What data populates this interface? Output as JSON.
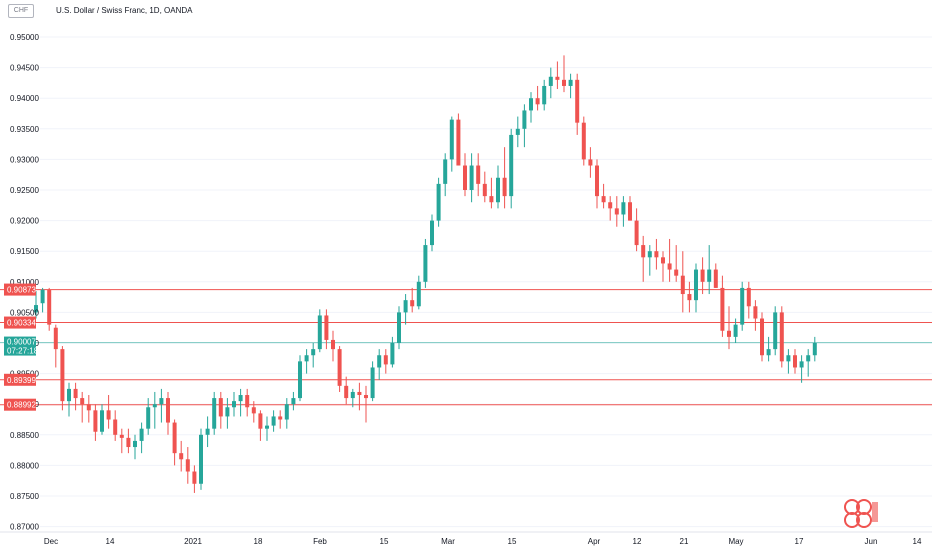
{
  "header": {
    "currency_badge": "CHF",
    "title": "U.S. Dollar / Swiss Franc, 1D, OANDA"
  },
  "chart_data": {
    "type": "candlestick",
    "y_ticks": [
      "0.95000",
      "0.94500",
      "0.94000",
      "0.93500",
      "0.93000",
      "0.92500",
      "0.92000",
      "0.91500",
      "0.91000",
      "0.90500",
      "0.90000",
      "0.89500",
      "0.89000",
      "0.88500",
      "0.88000",
      "0.87500",
      "0.87000"
    ],
    "y_tick_values": [
      0.95,
      0.945,
      0.94,
      0.935,
      0.93,
      0.925,
      0.92,
      0.915,
      0.91,
      0.905,
      0.9,
      0.895,
      0.89,
      0.885,
      0.88,
      0.875,
      0.87
    ],
    "ylim": [
      0.8692,
      0.9525
    ],
    "x_ticks": [
      "Dec",
      "14",
      "2021",
      "18",
      "Feb",
      "15",
      "Mar",
      "15",
      "Apr",
      "12",
      "21",
      "May",
      "17",
      "Jun",
      "14"
    ],
    "colors": {
      "up": "#26a69a",
      "down": "#ef5350",
      "level": "#ef5350",
      "current": "#26a69a",
      "grid": "#f0f3fa"
    },
    "level_lines": [
      {
        "label": "0.90873",
        "value": 0.90873
      },
      {
        "label": "0.90334",
        "value": 0.90334
      },
      {
        "label": "0.89399",
        "value": 0.89399
      },
      {
        "label": "0.88992",
        "value": 0.88992
      }
    ],
    "current_price": {
      "label": "0.90007",
      "countdown": "07:27:18",
      "value": 0.90007
    },
    "candles": [
      [
        0.905,
        0.9085,
        0.904,
        0.9062
      ],
      [
        0.9065,
        0.909,
        0.905,
        0.9087
      ],
      [
        0.9087,
        0.909,
        0.902,
        0.903
      ],
      [
        0.9025,
        0.903,
        0.896,
        0.899
      ],
      [
        0.899,
        0.8995,
        0.889,
        0.8905
      ],
      [
        0.8905,
        0.8935,
        0.888,
        0.8925
      ],
      [
        0.8925,
        0.8935,
        0.889,
        0.891
      ],
      [
        0.891,
        0.892,
        0.887,
        0.89
      ],
      [
        0.89,
        0.8915,
        0.887,
        0.889
      ],
      [
        0.889,
        0.89,
        0.884,
        0.8855
      ],
      [
        0.8855,
        0.89,
        0.885,
        0.889
      ],
      [
        0.889,
        0.8915,
        0.886,
        0.8875
      ],
      [
        0.8875,
        0.889,
        0.884,
        0.885
      ],
      [
        0.885,
        0.886,
        0.882,
        0.8845
      ],
      [
        0.8845,
        0.886,
        0.882,
        0.883
      ],
      [
        0.883,
        0.885,
        0.881,
        0.884
      ],
      [
        0.884,
        0.887,
        0.882,
        0.886
      ],
      [
        0.886,
        0.891,
        0.885,
        0.8895
      ],
      [
        0.8895,
        0.892,
        0.886,
        0.89
      ],
      [
        0.89,
        0.8925,
        0.887,
        0.891
      ],
      [
        0.891,
        0.892,
        0.885,
        0.887
      ],
      [
        0.887,
        0.8875,
        0.88,
        0.882
      ],
      [
        0.882,
        0.884,
        0.879,
        0.881
      ],
      [
        0.881,
        0.883,
        0.877,
        0.879
      ],
      [
        0.879,
        0.88,
        0.8755,
        0.877
      ],
      [
        0.877,
        0.886,
        0.876,
        0.885
      ],
      [
        0.885,
        0.888,
        0.883,
        0.886
      ],
      [
        0.886,
        0.892,
        0.885,
        0.891
      ],
      [
        0.891,
        0.892,
        0.886,
        0.888
      ],
      [
        0.888,
        0.891,
        0.886,
        0.8895
      ],
      [
        0.8895,
        0.892,
        0.888,
        0.8905
      ],
      [
        0.8905,
        0.8925,
        0.888,
        0.8915
      ],
      [
        0.8915,
        0.8925,
        0.888,
        0.8895
      ],
      [
        0.8895,
        0.8905,
        0.887,
        0.8885
      ],
      [
        0.8885,
        0.889,
        0.884,
        0.886
      ],
      [
        0.886,
        0.888,
        0.884,
        0.8865
      ],
      [
        0.8865,
        0.889,
        0.8855,
        0.888
      ],
      [
        0.888,
        0.889,
        0.886,
        0.8875
      ],
      [
        0.8875,
        0.891,
        0.886,
        0.89
      ],
      [
        0.89,
        0.892,
        0.889,
        0.891
      ],
      [
        0.891,
        0.898,
        0.8905,
        0.897
      ],
      [
        0.897,
        0.899,
        0.895,
        0.898
      ],
      [
        0.898,
        0.9,
        0.896,
        0.899
      ],
      [
        0.899,
        0.9055,
        0.8985,
        0.9045
      ],
      [
        0.9045,
        0.9055,
        0.899,
        0.9005
      ],
      [
        0.9005,
        0.902,
        0.897,
        0.899
      ],
      [
        0.899,
        0.8995,
        0.892,
        0.893
      ],
      [
        0.893,
        0.8945,
        0.89,
        0.891
      ],
      [
        0.891,
        0.8925,
        0.8895,
        0.892
      ],
      [
        0.892,
        0.8935,
        0.889,
        0.8915
      ],
      [
        0.8915,
        0.893,
        0.887,
        0.891
      ],
      [
        0.891,
        0.897,
        0.8905,
        0.896
      ],
      [
        0.896,
        0.899,
        0.894,
        0.898
      ],
      [
        0.898,
        0.899,
        0.895,
        0.8965
      ],
      [
        0.8965,
        0.901,
        0.896,
        0.9
      ],
      [
        0.9,
        0.906,
        0.899,
        0.905
      ],
      [
        0.905,
        0.908,
        0.903,
        0.907
      ],
      [
        0.907,
        0.909,
        0.905,
        0.906
      ],
      [
        0.906,
        0.911,
        0.9055,
        0.91
      ],
      [
        0.91,
        0.917,
        0.909,
        0.916
      ],
      [
        0.916,
        0.921,
        0.915,
        0.92
      ],
      [
        0.92,
        0.927,
        0.919,
        0.926
      ],
      [
        0.926,
        0.931,
        0.924,
        0.93
      ],
      [
        0.93,
        0.937,
        0.928,
        0.9365
      ],
      [
        0.9365,
        0.9375,
        0.929,
        0.929
      ],
      [
        0.929,
        0.931,
        0.924,
        0.925
      ],
      [
        0.925,
        0.931,
        0.923,
        0.929
      ],
      [
        0.929,
        0.931,
        0.924,
        0.926
      ],
      [
        0.926,
        0.928,
        0.923,
        0.924
      ],
      [
        0.924,
        0.927,
        0.922,
        0.923
      ],
      [
        0.923,
        0.929,
        0.922,
        0.927
      ],
      [
        0.927,
        0.932,
        0.922,
        0.924
      ],
      [
        0.924,
        0.935,
        0.922,
        0.934
      ],
      [
        0.934,
        0.937,
        0.932,
        0.935
      ],
      [
        0.935,
        0.939,
        0.932,
        0.938
      ],
      [
        0.938,
        0.941,
        0.936,
        0.94
      ],
      [
        0.94,
        0.942,
        0.938,
        0.939
      ],
      [
        0.939,
        0.943,
        0.938,
        0.942
      ],
      [
        0.942,
        0.945,
        0.94,
        0.9435
      ],
      [
        0.9435,
        0.946,
        0.9415,
        0.943
      ],
      [
        0.943,
        0.947,
        0.941,
        0.942
      ],
      [
        0.942,
        0.944,
        0.94,
        0.943
      ],
      [
        0.943,
        0.944,
        0.934,
        0.936
      ],
      [
        0.936,
        0.937,
        0.929,
        0.93
      ],
      [
        0.93,
        0.932,
        0.927,
        0.929
      ],
      [
        0.929,
        0.93,
        0.922,
        0.924
      ],
      [
        0.924,
        0.926,
        0.922,
        0.923
      ],
      [
        0.923,
        0.924,
        0.92,
        0.922
      ],
      [
        0.922,
        0.924,
        0.919,
        0.921
      ],
      [
        0.921,
        0.924,
        0.919,
        0.923
      ],
      [
        0.923,
        0.924,
        0.92,
        0.92
      ],
      [
        0.92,
        0.922,
        0.915,
        0.916
      ],
      [
        0.916,
        0.9175,
        0.91,
        0.914
      ],
      [
        0.914,
        0.916,
        0.911,
        0.915
      ],
      [
        0.915,
        0.917,
        0.912,
        0.914
      ],
      [
        0.914,
        0.915,
        0.91,
        0.913
      ],
      [
        0.913,
        0.917,
        0.91,
        0.912
      ],
      [
        0.912,
        0.916,
        0.91,
        0.911
      ],
      [
        0.911,
        0.915,
        0.905,
        0.908
      ],
      [
        0.908,
        0.91,
        0.905,
        0.907
      ],
      [
        0.907,
        0.913,
        0.905,
        0.912
      ],
      [
        0.912,
        0.914,
        0.908,
        0.91
      ],
      [
        0.91,
        0.916,
        0.908,
        0.912
      ],
      [
        0.912,
        0.913,
        0.909,
        0.909
      ],
      [
        0.909,
        0.911,
        0.901,
        0.902
      ],
      [
        0.902,
        0.906,
        0.899,
        0.901
      ],
      [
        0.901,
        0.904,
        0.9,
        0.903
      ],
      [
        0.903,
        0.91,
        0.902,
        0.909
      ],
      [
        0.909,
        0.91,
        0.904,
        0.906
      ],
      [
        0.906,
        0.907,
        0.902,
        0.904
      ],
      [
        0.904,
        0.905,
        0.897,
        0.898
      ],
      [
        0.898,
        0.901,
        0.897,
        0.899
      ],
      [
        0.899,
        0.906,
        0.898,
        0.905
      ],
      [
        0.905,
        0.906,
        0.896,
        0.897
      ],
      [
        0.897,
        0.899,
        0.895,
        0.898
      ],
      [
        0.898,
        0.899,
        0.895,
        0.896
      ],
      [
        0.896,
        0.898,
        0.8935,
        0.897
      ],
      [
        0.897,
        0.899,
        0.8945,
        0.898
      ],
      [
        0.898,
        0.901,
        0.897,
        0.9
      ]
    ]
  }
}
